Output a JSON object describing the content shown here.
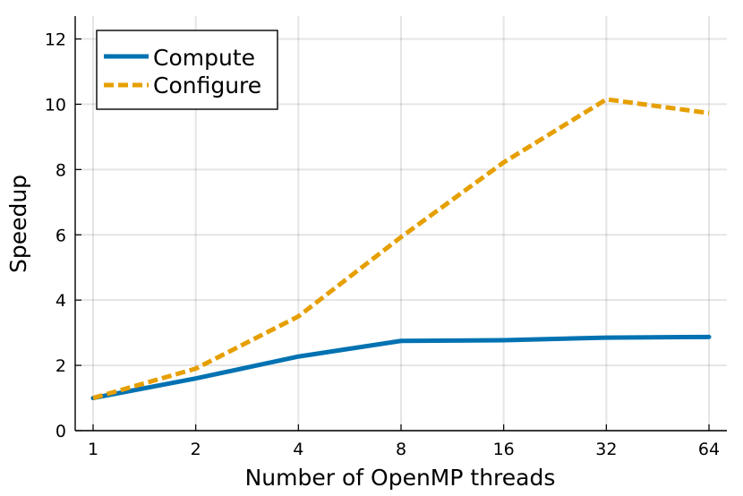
{
  "chart_data": {
    "type": "line",
    "title": "",
    "xlabel": "Number of OpenMP threads",
    "ylabel": "Speedup",
    "x_scale": "log2",
    "x": [
      1,
      2,
      4,
      8,
      16,
      32,
      64
    ],
    "x_tick_labels": [
      "1",
      "2",
      "4",
      "8",
      "16",
      "32",
      "64"
    ],
    "y_ticks": [
      0,
      2,
      4,
      6,
      8,
      10,
      12
    ],
    "ylim": [
      0,
      12.7
    ],
    "grid": true,
    "legend_position": "top-left",
    "series": [
      {
        "name": "Compute",
        "values": [
          1.0,
          1.6,
          2.27,
          2.75,
          2.77,
          2.85,
          2.87
        ],
        "color": "#0072b2",
        "line_style": "solid"
      },
      {
        "name": "Configure",
        "values": [
          1.0,
          1.9,
          3.5,
          5.93,
          8.22,
          10.15,
          9.73
        ],
        "color": "#e69f00",
        "line_style": "dashed"
      }
    ]
  }
}
